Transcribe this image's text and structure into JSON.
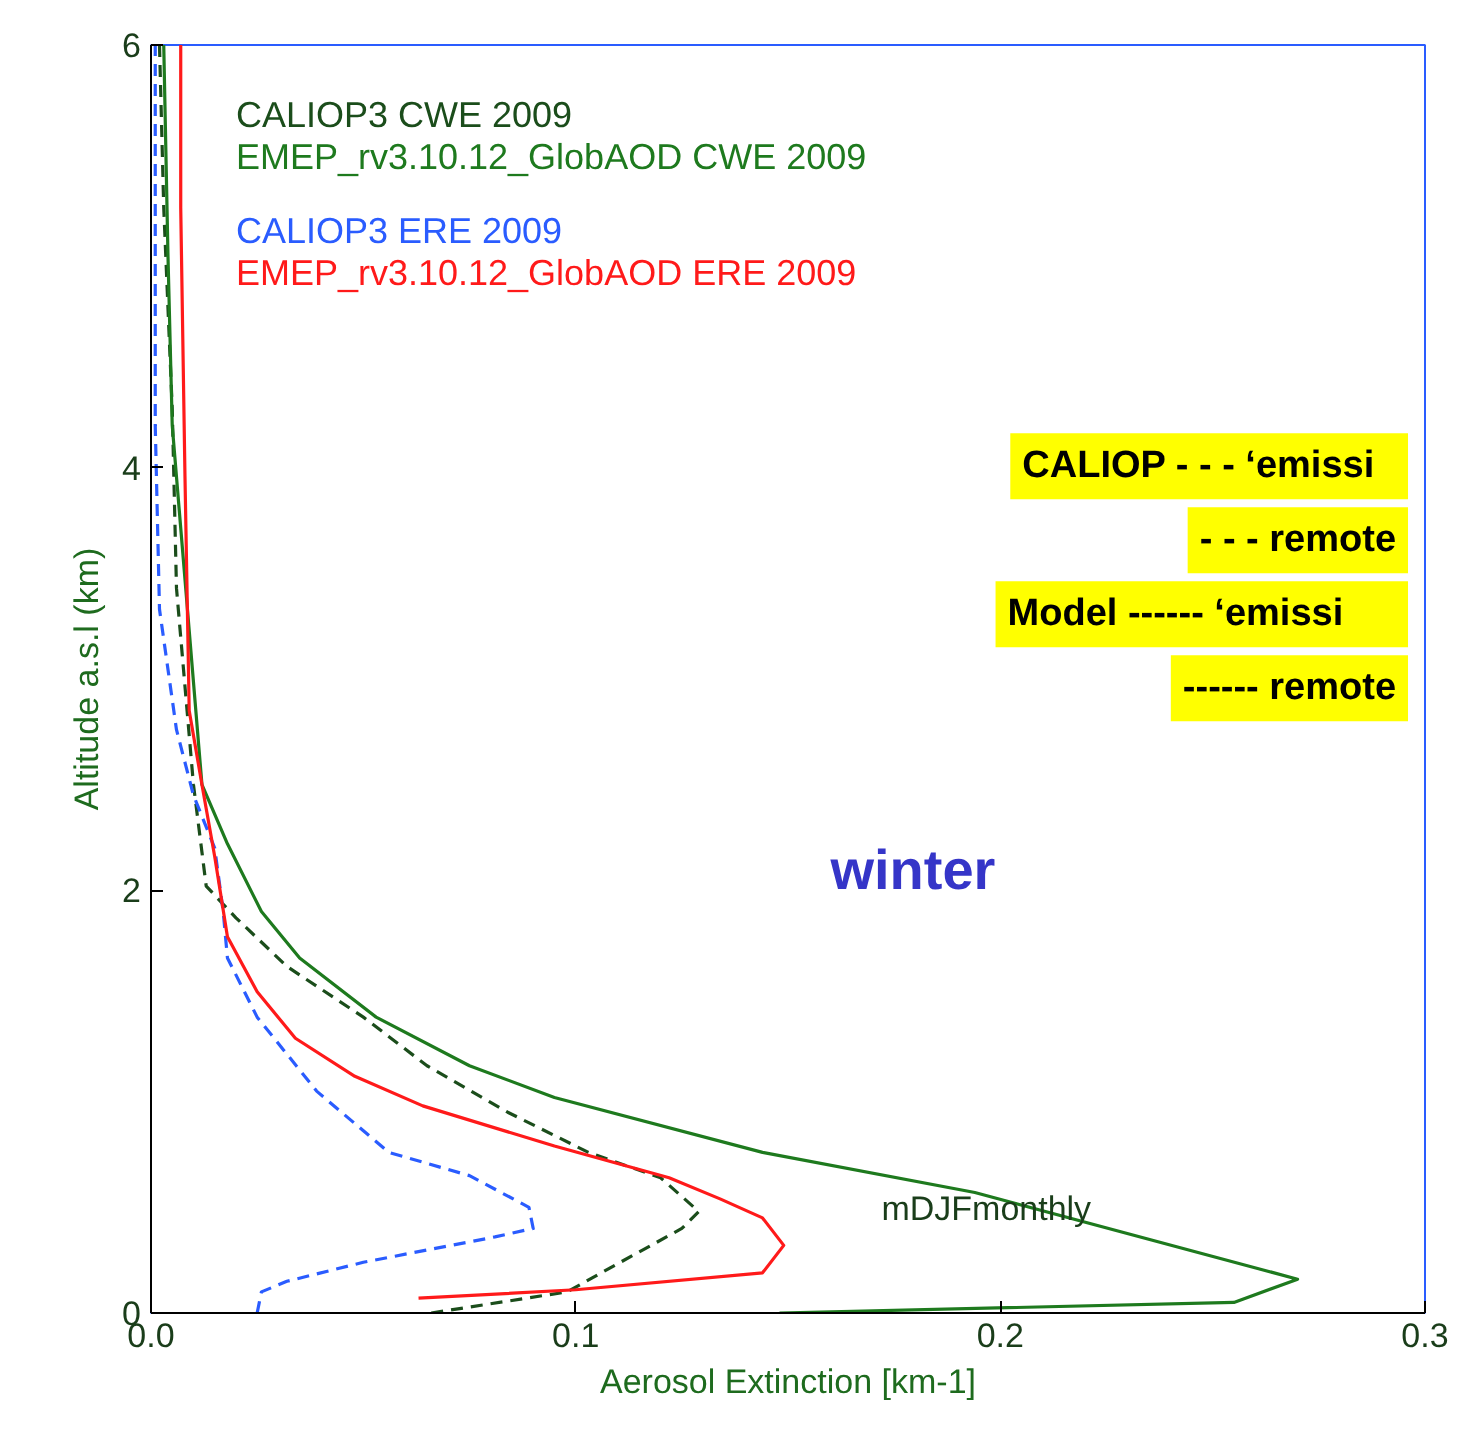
{
  "chart_data": {
    "type": "line",
    "xlabel": "Aerosol Extinction [km-1]",
    "ylabel": "Altitude a.s.l (km)",
    "xlim": [
      0,
      0.3
    ],
    "ylim": [
      0,
      6
    ],
    "xticks": [
      {
        "value": 0,
        "label": "0.0"
      },
      0.1,
      0.2,
      0.3
    ],
    "yticks": [
      0,
      2,
      4,
      6
    ],
    "grid": false,
    "legend": "top left",
    "marker": "none",
    "series": [
      {
        "name": "CALIOP3 CWE 2009",
        "color": "#1b4d1b",
        "line_style": "dashed",
        "x": [
          0.066,
          0.098,
          0.106,
          0.125,
          0.129,
          0.12,
          0.103,
          0.084,
          0.065,
          0.05,
          0.032,
          0.02,
          0.013,
          0.012,
          0.01,
          0.006,
          0.005,
          0.003,
          0.002
        ],
        "values": [
          0.0,
          0.1,
          0.19,
          0.4,
          0.48,
          0.64,
          0.76,
          0.95,
          1.17,
          1.4,
          1.64,
          1.87,
          2.02,
          2.18,
          2.5,
          3.43,
          4.28,
          5.23,
          6.0
        ]
      },
      {
        "name": "EMEP_rv3.10.12_GlobAOD CWE 2009",
        "color": "#1e7a1e",
        "line_style": "solid",
        "x": [
          0.148,
          0.255,
          0.27,
          0.194,
          0.144,
          0.095,
          0.075,
          0.053,
          0.035,
          0.026,
          0.018,
          0.012,
          0.005,
          0.004,
          0.003
        ],
        "values": [
          0.0,
          0.05,
          0.16,
          0.57,
          0.76,
          1.02,
          1.17,
          1.4,
          1.68,
          1.9,
          2.22,
          2.5,
          4.2,
          5.0,
          6.0
        ]
      },
      {
        "name": "CALIOP3 ERE 2009",
        "color": "#2a5cff",
        "line_style": "dashed",
        "x": [
          0.025,
          0.026,
          0.032,
          0.05,
          0.081,
          0.09,
          0.089,
          0.075,
          0.056,
          0.039,
          0.025,
          0.018,
          0.017,
          0.015,
          0.01,
          0.006,
          0.002,
          0.001,
          0.001,
          0.001
        ],
        "values": [
          0.0,
          0.1,
          0.15,
          0.24,
          0.36,
          0.4,
          0.5,
          0.65,
          0.76,
          1.05,
          1.4,
          1.68,
          1.9,
          2.2,
          2.45,
          2.76,
          3.33,
          4.2,
          5.3,
          6.0
        ]
      },
      {
        "name": "EMEP_rv3.10.12_GlobAOD ERE 2009",
        "color": "#ff1a1a",
        "line_style": "solid",
        "x": [
          0.063,
          0.1,
          0.144,
          0.149,
          0.144,
          0.134,
          0.122,
          0.095,
          0.064,
          0.048,
          0.034,
          0.025,
          0.018,
          0.015,
          0.012,
          0.009,
          0.008,
          0.007,
          0.007
        ],
        "values": [
          0.07,
          0.11,
          0.19,
          0.32,
          0.45,
          0.54,
          0.64,
          0.79,
          0.98,
          1.12,
          1.3,
          1.52,
          1.78,
          2.16,
          2.5,
          2.85,
          3.96,
          5.23,
          6.0
        ]
      }
    ],
    "annotations": [
      "winter",
      "mDJFmonthly",
      "CALIOP   - - - ‘emissi",
      "- - - remote",
      "Model      ------ ‘emissi",
      "------ remote"
    ]
  }
}
